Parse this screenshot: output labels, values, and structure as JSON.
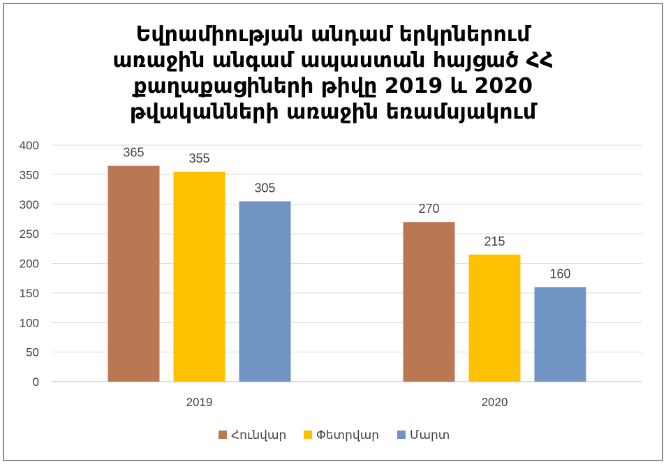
{
  "chart_data": {
    "type": "bar",
    "title_lines": [
      "Եվրամիության անդամ երկրներում",
      "առաջին անգամ ապաստան հայցած ՀՀ",
      "քաղաքացիների թիվը 2019 և 2020",
      "թվականների առաջին եռամսյակում"
    ],
    "categories": [
      "2019",
      "2020"
    ],
    "series": [
      {
        "name": "Հունվար",
        "color": "#b97852",
        "values": [
          365,
          270
        ]
      },
      {
        "name": "Փետրվար",
        "color": "#ffc000",
        "values": [
          355,
          215
        ]
      },
      {
        "name": "Մարտ",
        "color": "#7094c4",
        "values": [
          305,
          160
        ]
      }
    ],
    "ylim": [
      0,
      400
    ],
    "yticks": [
      "0",
      "50",
      "100",
      "150",
      "200",
      "250",
      "300",
      "350",
      "400"
    ],
    "grid": true,
    "legend_position": "bottom"
  }
}
